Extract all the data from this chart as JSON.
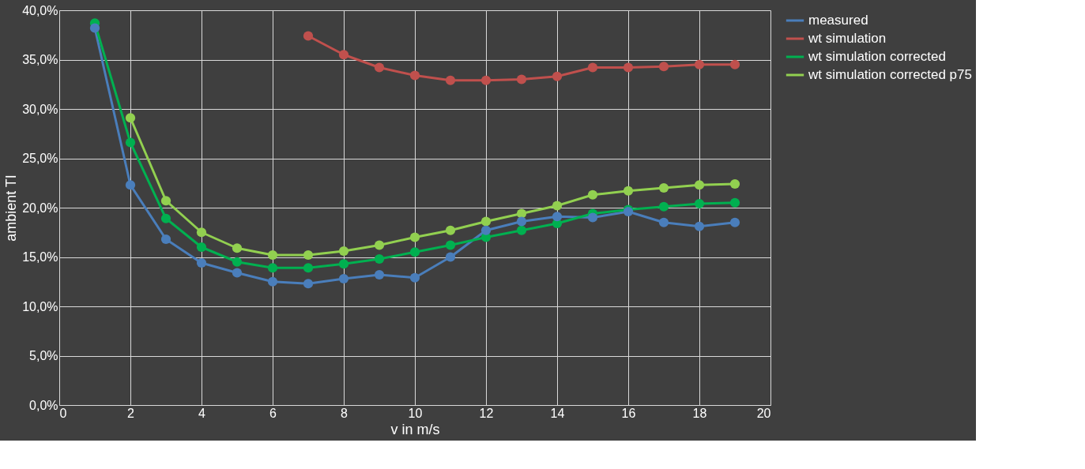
{
  "chart_data": {
    "type": "line",
    "xlabel": "v in m/s",
    "ylabel": "ambient TI",
    "x": [
      1,
      2,
      3,
      4,
      5,
      6,
      7,
      8,
      9,
      10,
      11,
      12,
      13,
      14,
      15,
      16,
      17,
      18,
      19
    ],
    "series": [
      {
        "name": "measured",
        "color": "#4a7ebb",
        "values": [
          38.2,
          22.3,
          16.8,
          14.4,
          13.4,
          12.5,
          12.3,
          12.8,
          13.2,
          12.9,
          15.0,
          17.7,
          18.6,
          19.1,
          19.0,
          19.6,
          18.5,
          18.1,
          18.5
        ]
      },
      {
        "name": "wt simulation",
        "color": "#c0504d",
        "values": [
          null,
          null,
          null,
          null,
          null,
          null,
          37.4,
          35.5,
          34.2,
          33.4,
          32.9,
          32.9,
          33.0,
          33.3,
          34.2,
          34.2,
          34.3,
          34.5,
          34.5
        ]
      },
      {
        "name": "wt simulation corrected",
        "color": "#00b050",
        "values": [
          38.7,
          26.6,
          18.9,
          16.0,
          14.5,
          13.9,
          13.9,
          14.3,
          14.8,
          15.5,
          16.2,
          17.0,
          17.7,
          18.4,
          19.4,
          19.8,
          20.1,
          20.4,
          20.5
        ]
      },
      {
        "name": "wt simulation corrected p75",
        "color": "#92d050",
        "values": [
          null,
          29.1,
          20.7,
          17.5,
          15.9,
          15.2,
          15.2,
          15.6,
          16.2,
          17.0,
          17.7,
          18.6,
          19.4,
          20.2,
          21.3,
          21.7,
          22.0,
          22.3,
          22.4
        ]
      }
    ],
    "xlim": [
      0,
      20
    ],
    "xticks": [
      0,
      2,
      4,
      6,
      8,
      10,
      12,
      14,
      16,
      18,
      20
    ],
    "ylim": [
      0,
      40
    ],
    "yticks": [
      {
        "value": 0,
        "label": "0,0%"
      },
      {
        "value": 5,
        "label": "5,0%"
      },
      {
        "value": 10,
        "label": "10,0%"
      },
      {
        "value": 15,
        "label": "15,0%"
      },
      {
        "value": 20,
        "label": "20,0%"
      },
      {
        "value": 25,
        "label": "25,0%"
      },
      {
        "value": 30,
        "label": "30,0%"
      },
      {
        "value": 35,
        "label": "35,0%"
      },
      {
        "value": 40,
        "label": "40,0%"
      }
    ],
    "grid": true,
    "legend": "right",
    "marker": "circle",
    "line_style": "solid"
  }
}
